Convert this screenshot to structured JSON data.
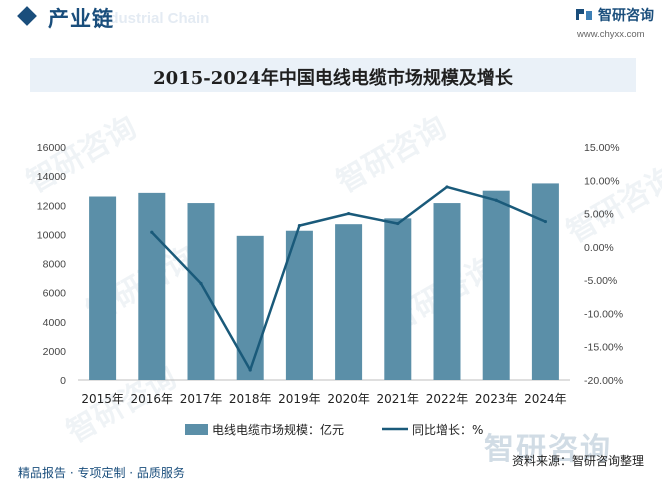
{
  "header": {
    "section_title": "产业链",
    "section_title_en": "Industrial Chain",
    "brand_name": "智研咨询",
    "brand_url": "www.chyxx.com"
  },
  "footer": {
    "tagline": "精品报告 · 专项定制 · 品质服务",
    "source": "资料来源：智研咨询整理",
    "watermark": "智研咨询"
  },
  "colors": {
    "bar": "#5b8fa8",
    "line": "#1a5a7a",
    "brand": "#1a4e7c"
  },
  "chart_data": {
    "type": "bar",
    "title": "2015-2024年中国电线电缆市场规模及增长",
    "categories": [
      "2015年",
      "2016年",
      "2017年",
      "2018年",
      "2019年",
      "2020年",
      "2021年",
      "2022年",
      "2023年",
      "2024年"
    ],
    "series": [
      {
        "name": "电线电缆市场规模：亿元",
        "type": "bar",
        "axis": "left",
        "values": [
          12600,
          12850,
          12150,
          9900,
          10250,
          10700,
          11100,
          12150,
          13000,
          13500
        ]
      },
      {
        "name": "同比增长：%",
        "type": "line",
        "axis": "right",
        "values": [
          null,
          2.2,
          -5.5,
          -18.5,
          3.2,
          5.0,
          3.5,
          9.0,
          7.0,
          3.8
        ]
      }
    ],
    "y_left": {
      "min": 0,
      "max": 16000,
      "ticks": [
        "0",
        "2000",
        "4000",
        "6000",
        "8000",
        "10000",
        "12000",
        "14000",
        "16000"
      ]
    },
    "y_right": {
      "min": -20,
      "max": 15,
      "ticks": [
        "-20.00%",
        "-15.00%",
        "-10.00%",
        "-5.00%",
        "0.00%",
        "5.00%",
        "10.00%",
        "15.00%"
      ]
    },
    "grid": false,
    "legend_position": "bottom"
  }
}
